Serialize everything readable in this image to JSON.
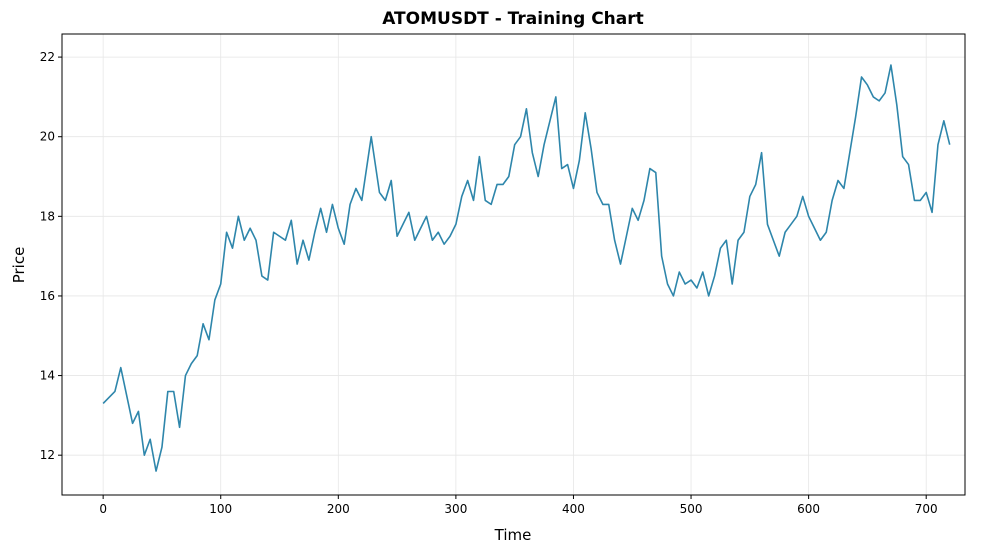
{
  "chart_data": {
    "type": "line",
    "title": "ATOMUSDT - Training Chart",
    "x_label": "Time",
    "y_label": "Price",
    "x": [
      0,
      10,
      15,
      20,
      25,
      30,
      35,
      40,
      45,
      50,
      55,
      60,
      65,
      70,
      75,
      80,
      85,
      90,
      95,
      100,
      105,
      110,
      115,
      120,
      125,
      130,
      135,
      140,
      145,
      150,
      155,
      160,
      165,
      170,
      175,
      180,
      185,
      190,
      195,
      200,
      205,
      210,
      215,
      220,
      225,
      228,
      235,
      240,
      245,
      250,
      255,
      260,
      265,
      270,
      275,
      280,
      285,
      290,
      295,
      300,
      305,
      310,
      315,
      320,
      325,
      330,
      335,
      340,
      345,
      350,
      355,
      360,
      365,
      370,
      375,
      380,
      385,
      390,
      395,
      400,
      405,
      410,
      415,
      420,
      425,
      430,
      435,
      440,
      445,
      450,
      455,
      460,
      465,
      470,
      475,
      480,
      485,
      490,
      495,
      500,
      505,
      510,
      515,
      520,
      525,
      530,
      535,
      540,
      545,
      550,
      555,
      560,
      565,
      570,
      575,
      580,
      585,
      590,
      595,
      600,
      605,
      610,
      615,
      620,
      625,
      630,
      635,
      640,
      645,
      650,
      655,
      660,
      665,
      670,
      675,
      680,
      685,
      690,
      695,
      700,
      705,
      710,
      715,
      720
    ],
    "series": [
      {
        "name": "Price",
        "color": "#2e86ab",
        "values": [
          13.3,
          13.6,
          14.2,
          13.5,
          12.8,
          13.1,
          12.0,
          12.4,
          11.6,
          12.2,
          13.6,
          13.6,
          12.7,
          14.0,
          14.3,
          14.5,
          15.3,
          14.9,
          15.9,
          16.3,
          17.6,
          17.2,
          18.0,
          17.4,
          17.7,
          17.4,
          16.5,
          16.4,
          17.6,
          17.5,
          17.4,
          17.9,
          16.8,
          17.4,
          16.9,
          17.6,
          18.2,
          17.6,
          18.3,
          17.7,
          17.3,
          18.3,
          18.7,
          18.4,
          19.4,
          20.0,
          18.6,
          18.4,
          18.9,
          17.5,
          17.8,
          18.1,
          17.4,
          17.7,
          18.0,
          17.4,
          17.6,
          17.3,
          17.5,
          17.8,
          18.5,
          18.9,
          18.4,
          19.5,
          18.4,
          18.3,
          18.8,
          18.8,
          19.0,
          19.8,
          20.0,
          20.7,
          19.6,
          19.0,
          19.8,
          20.4,
          21.0,
          19.2,
          19.3,
          18.7,
          19.4,
          20.6,
          19.7,
          18.6,
          18.3,
          18.3,
          17.4,
          16.8,
          17.5,
          18.2,
          17.9,
          18.4,
          19.2,
          19.1,
          17.0,
          16.3,
          16.0,
          16.6,
          16.3,
          16.4,
          16.2,
          16.6,
          16.0,
          16.5,
          17.2,
          17.4,
          16.3,
          17.4,
          17.6,
          18.5,
          18.8,
          19.6,
          17.8,
          17.4,
          17.0,
          17.6,
          17.8,
          18.0,
          18.5,
          18.0,
          17.7,
          17.4,
          17.6,
          18.4,
          18.9,
          18.7,
          19.6,
          20.5,
          21.5,
          21.3,
          21.0,
          20.9,
          21.1,
          21.8,
          20.8,
          19.5,
          19.3,
          18.4,
          18.4,
          18.6,
          18.1,
          19.8,
          20.4,
          19.8
        ]
      }
    ],
    "xlim": [
      -35,
      733
    ],
    "ylim": [
      11.0,
      22.58
    ],
    "xticks": [
      0,
      100,
      200,
      300,
      400,
      500,
      600,
      700
    ],
    "yticks": [
      12,
      14,
      16,
      18,
      20,
      22
    ],
    "grid": true
  }
}
